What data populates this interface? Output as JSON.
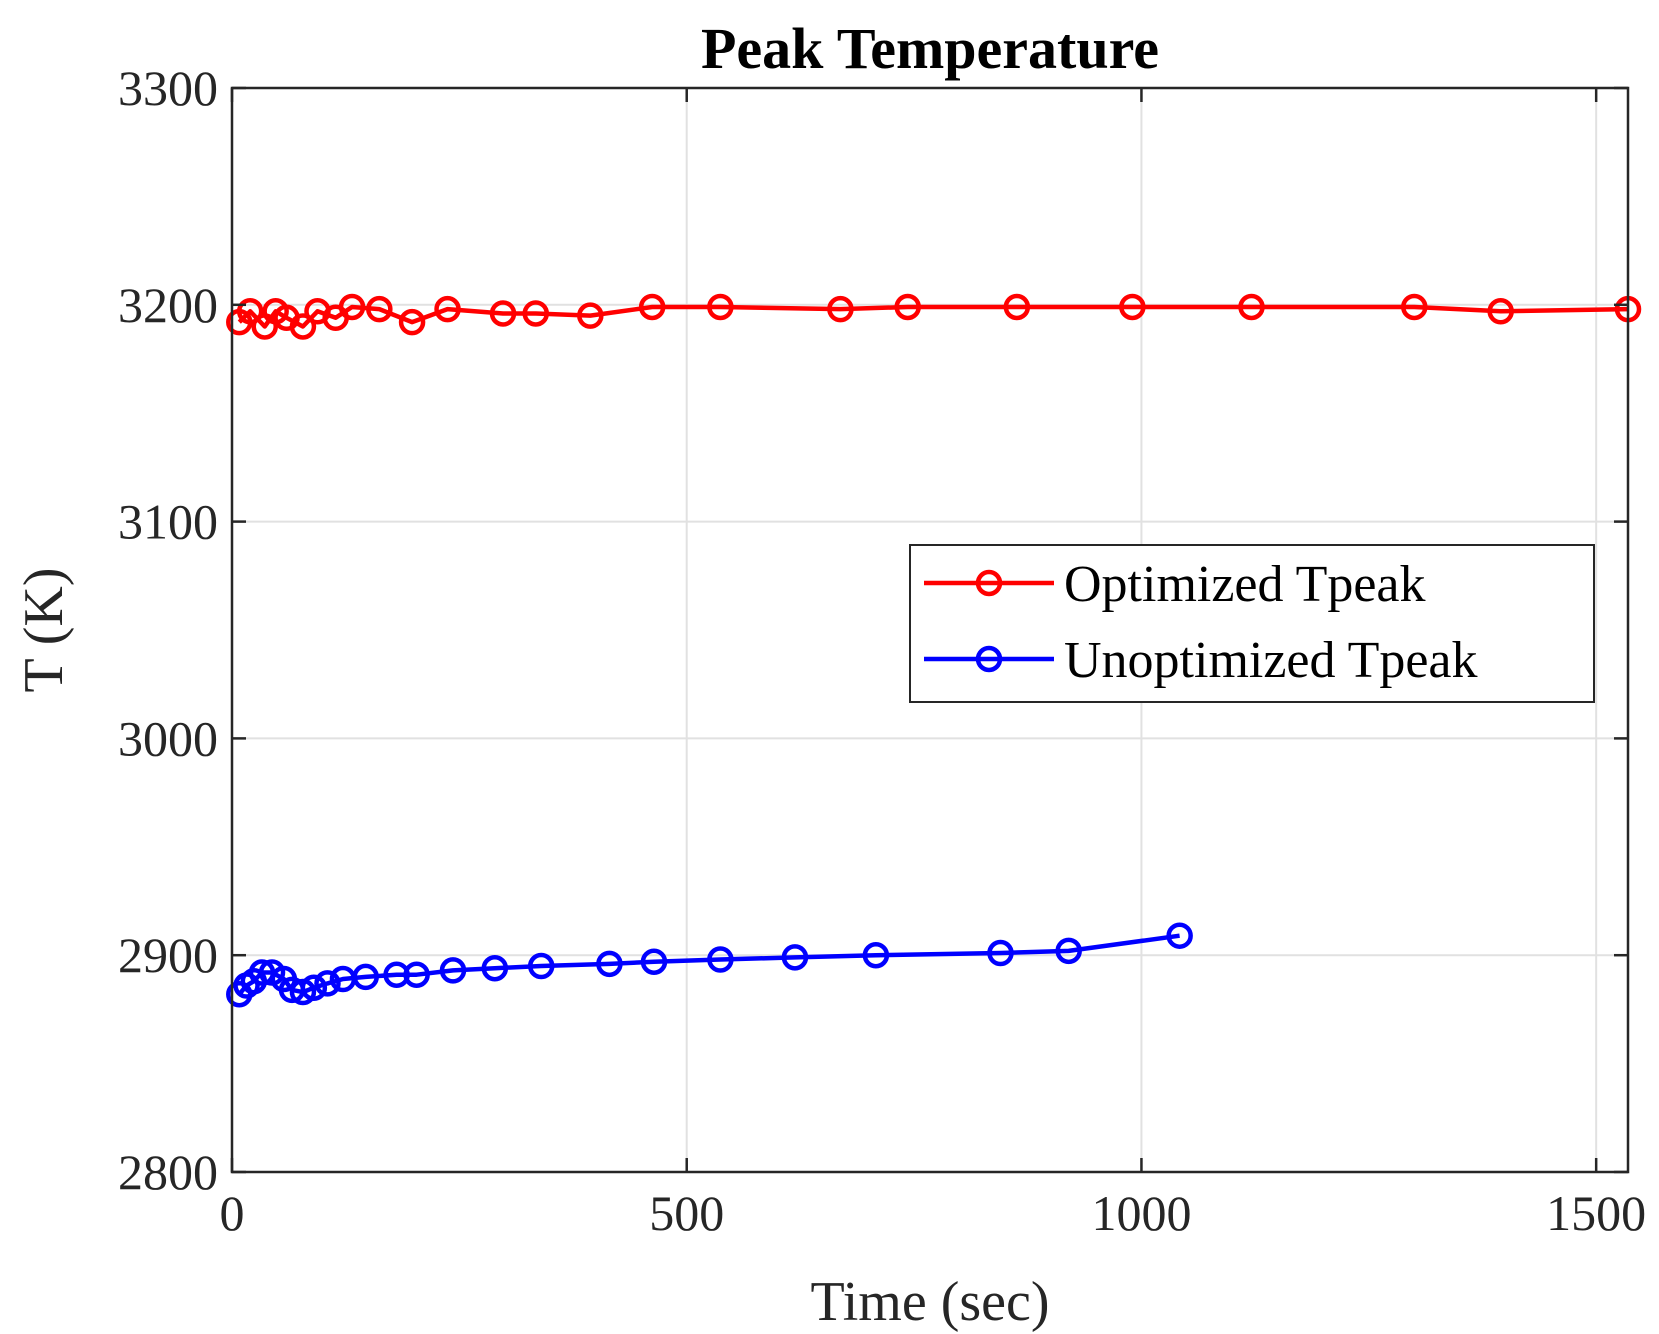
{
  "chart_data": {
    "type": "line",
    "title": "Peak Temperature",
    "xlabel": "Time (sec)",
    "ylabel": "T (K)",
    "xlim": [
      0,
      1535
    ],
    "ylim": [
      2800,
      3300
    ],
    "xticks": [
      0,
      500,
      1000,
      1500
    ],
    "yticks": [
      2800,
      2900,
      3000,
      3100,
      3200,
      3300
    ],
    "xtick_labels": [
      "0",
      "500",
      "1000",
      "1500"
    ],
    "ytick_labels": [
      "2800",
      "2900",
      "3000",
      "3100",
      "3200",
      "3300"
    ],
    "grid": true,
    "legend_position": "center-right",
    "series": [
      {
        "name": "Optimized Tpeak",
        "color": "#ff0000",
        "marker": "circle",
        "x": [
          8,
          20,
          36,
          48,
          60,
          78,
          94,
          114,
          132,
          162,
          198,
          237,
          298,
          334,
          394,
          462,
          537,
          669,
          743,
          863,
          990,
          1121,
          1300,
          1395,
          1535
        ],
        "y": [
          3192,
          3197,
          3190,
          3197,
          3194,
          3190,
          3197,
          3194,
          3199,
          3198,
          3192,
          3198,
          3196,
          3196,
          3195,
          3199,
          3199,
          3198,
          3199,
          3199,
          3199,
          3199,
          3199,
          3197,
          3198
        ]
      },
      {
        "name": "Unoptimized Tpeak",
        "color": "#0000ff",
        "marker": "circle",
        "x": [
          8,
          16,
          24,
          33,
          44,
          57,
          66,
          78,
          90,
          105,
          122,
          147,
          181,
          203,
          243,
          289,
          340,
          415,
          464,
          537,
          619,
          708,
          845,
          920,
          1042
        ],
        "y": [
          2882,
          2886,
          2888,
          2892,
          2892,
          2889,
          2884,
          2883,
          2885,
          2887,
          2889,
          2890,
          2891,
          2891,
          2893,
          2894,
          2895,
          2896,
          2897,
          2898,
          2899,
          2900,
          2901,
          2902,
          2909
        ]
      }
    ]
  }
}
